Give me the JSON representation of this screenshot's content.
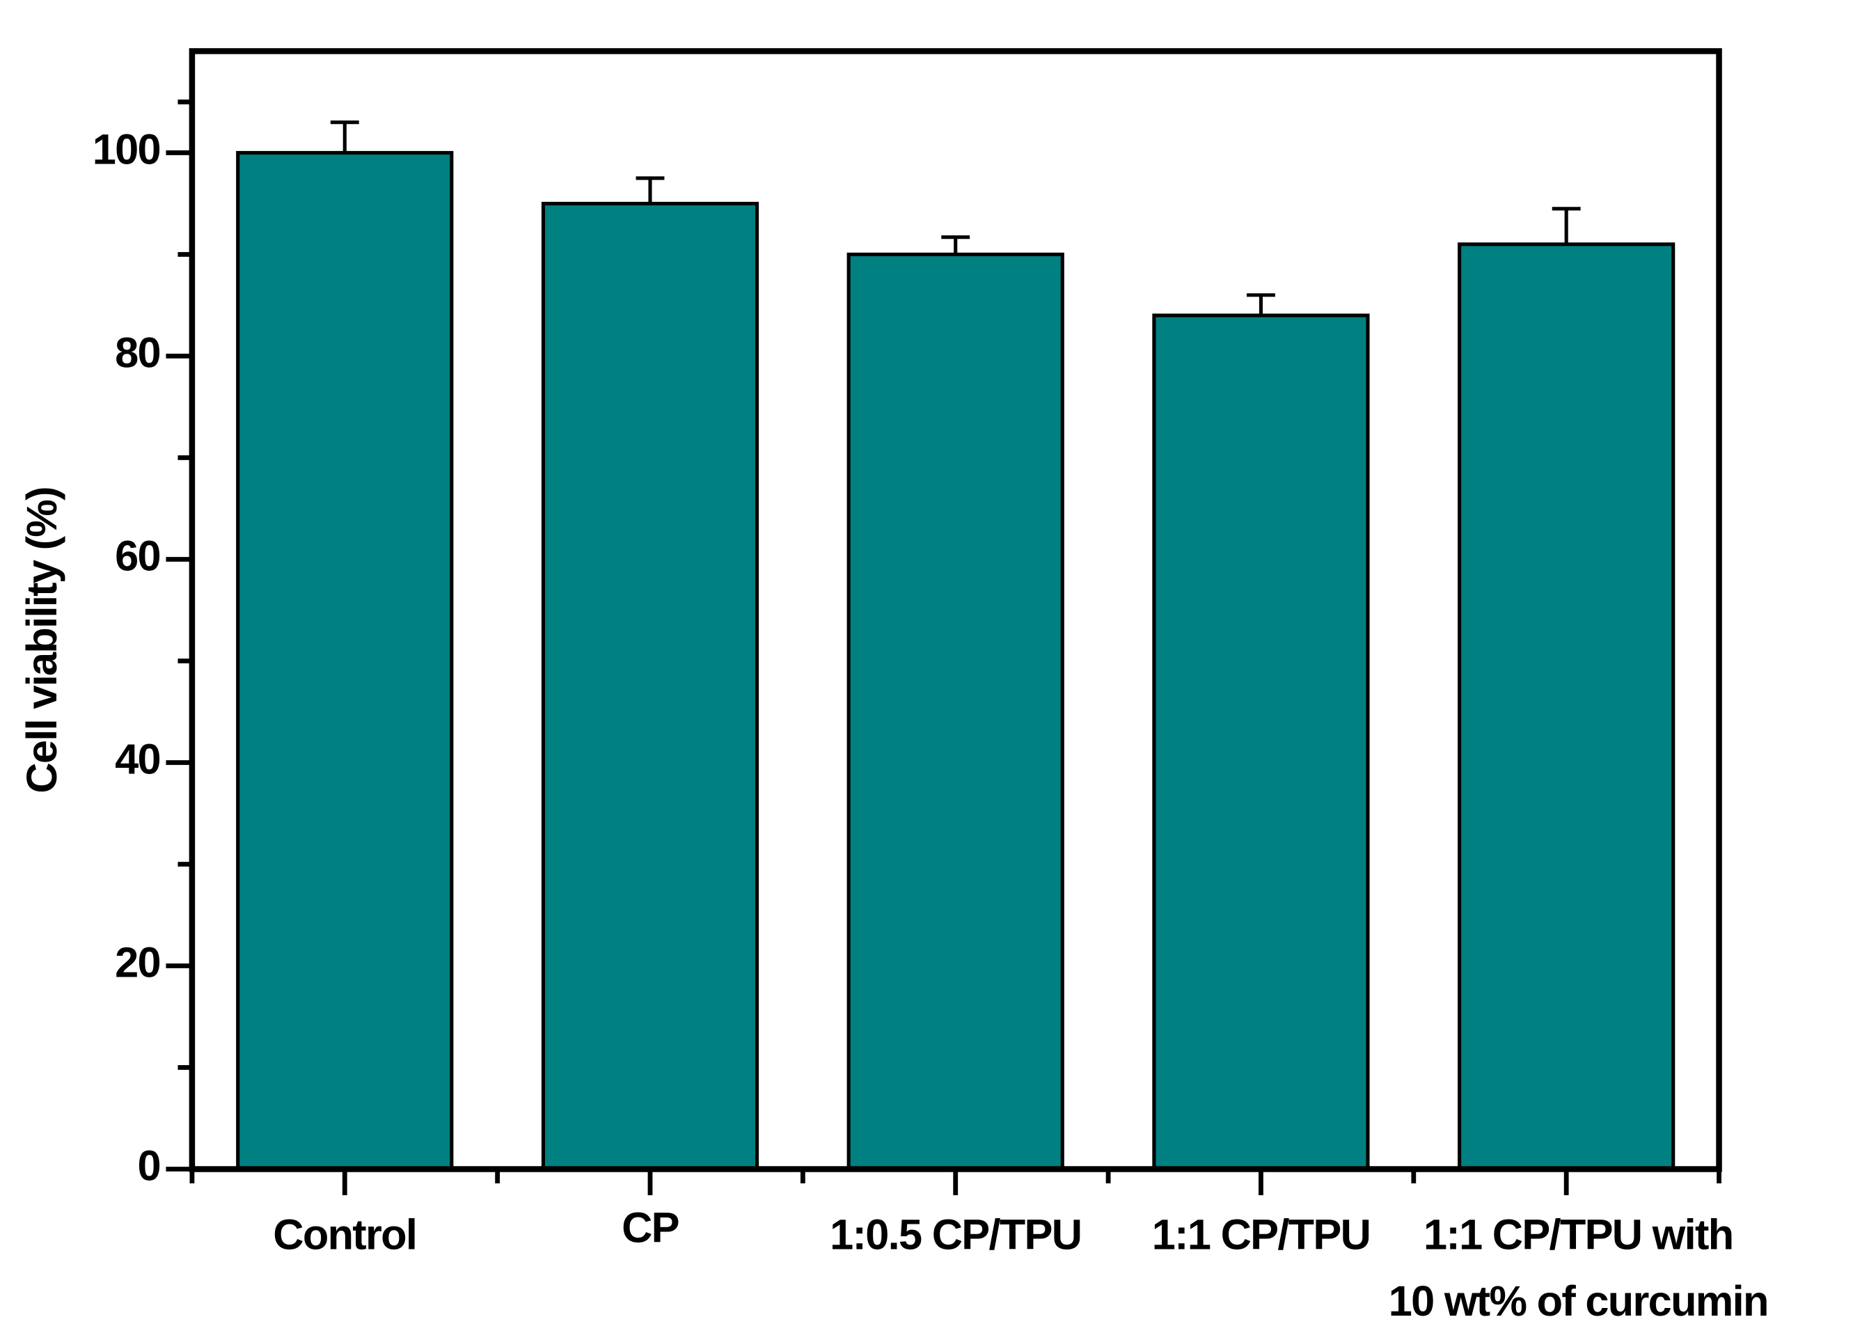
{
  "chart_data": {
    "type": "bar",
    "y_label": "Cell viability (%)",
    "categories": [
      "Control",
      "CP",
      "1:0.5 CP/TPU",
      "1:1 CP/TPU",
      [
        "1:1 CP/TPU with",
        "10 wt% of curcumin"
      ]
    ],
    "values": [
      100,
      95,
      90,
      84,
      91
    ],
    "errors": [
      3,
      2.5,
      1.7,
      2,
      3.5
    ],
    "color": "#008080",
    "ylim": [
      0,
      110
    ],
    "yticks": [
      0,
      20,
      40,
      60,
      80,
      100
    ],
    "grid": false
  }
}
